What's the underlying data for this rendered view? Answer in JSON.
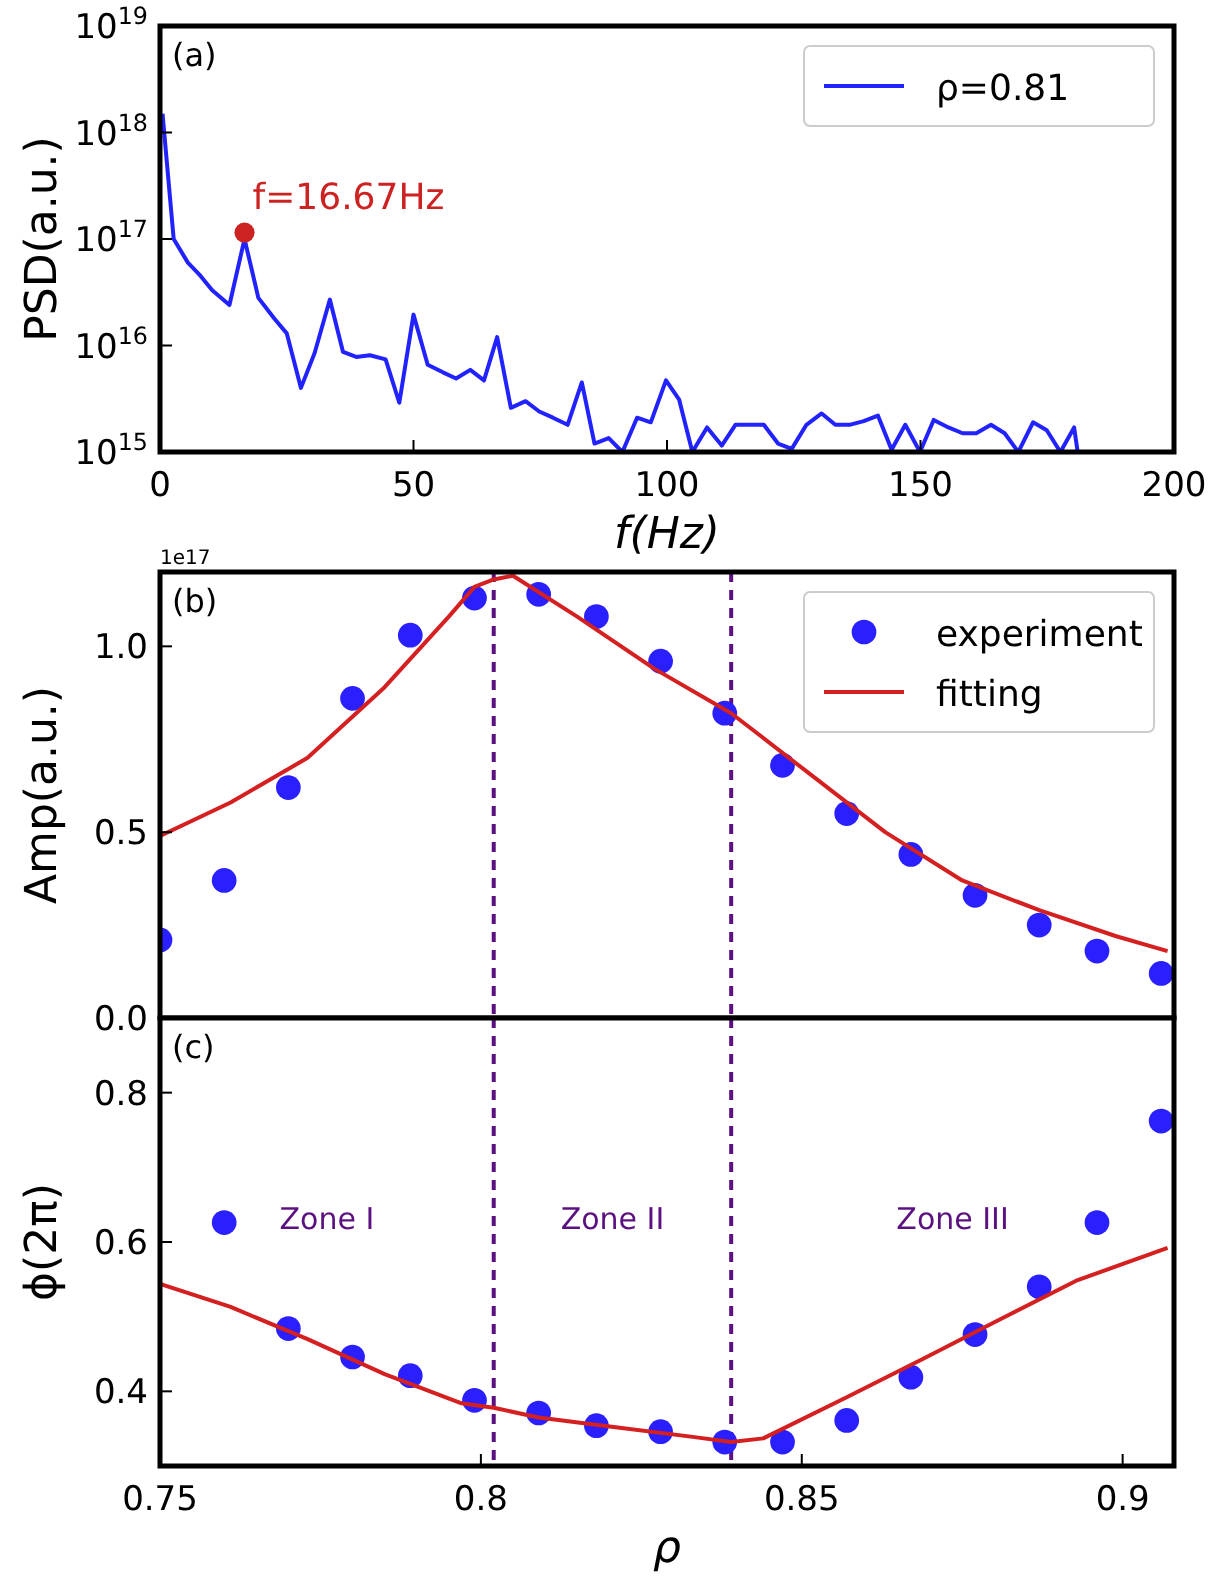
{
  "chart_data": [
    {
      "type": "line",
      "xlabel": "f(Hz)",
      "ylabel": "PSD(a.u.)",
      "log": "y",
      "xlim": [
        0,
        200
      ],
      "xticks": [
        0,
        50,
        100,
        150,
        200
      ],
      "ylim": [
        1000000000000000.0,
        1e+19
      ],
      "yticks": [
        {
          "value": 1000000000000000.0,
          "label": "10$^{15}$"
        },
        {
          "value": 1e+16,
          "label": "10$^{16}$"
        },
        {
          "value": 1e+17,
          "label": "10$^{17}$"
        },
        {
          "value": 1e+18,
          "label": "10$^{18}$"
        },
        {
          "value": 1e+19,
          "label": "10$^{19}$"
        }
      ],
      "legend": "top right",
      "annotations": [
        "(a)",
        {
          "text": "f=16.67Hz",
          "x": 16.67,
          "y": 1.15e+17
        }
      ],
      "series": [
        {
          "name": "ρ=0.81",
          "color": "#2222ff",
          "x": [
            0.5,
            2.7,
            5.5,
            8,
            10.3,
            13.7,
            16.67,
            19.4,
            22.5,
            25,
            27.8,
            30.5,
            33.5,
            36.1,
            38.7,
            41.4,
            44.5,
            47.2,
            50,
            52.8,
            55.8,
            58.4,
            61.2,
            63.9,
            66.5,
            69.2,
            72.1,
            74.8,
            77.5,
            80.4,
            83.2,
            85.7,
            88.5,
            91.2,
            94.1,
            96.8,
            99.8,
            102.4,
            105,
            107.9,
            110.8,
            113.5,
            116.5,
            119.1,
            121.9,
            124.6,
            127.5,
            130.5,
            133.2,
            136,
            138.8,
            141.6,
            144.3,
            147,
            149.9,
            152.6,
            155.5,
            158.3,
            161,
            163.9,
            166.6,
            169.3,
            172.2,
            174.9,
            177.6,
            180.3,
            181
          ],
          "values": [
            1.5e+18,
            1e+17,
            6e+16,
            4.5e+16,
            3.3e+16,
            2.4e+16,
            1e+17,
            2.8e+16,
            1.8e+16,
            1.3e+16,
            4000000000000000.0,
            8500000000000000.0,
            2.7e+16,
            8700000000000000.0,
            7800000000000000.0,
            8100000000000000.0,
            7400000000000000.0,
            2900000000000000.0,
            1.95e+16,
            6600000000000000.0,
            5600000000000000.0,
            4900000000000000.0,
            5900000000000000.0,
            4700000000000000.0,
            1.2e+16,
            2600000000000000.0,
            3000000000000000.0,
            2400000000000000.0,
            2100000000000000.0,
            1800000000000000.0,
            4500000000000000.0,
            1200000000000000.0,
            1350000000000000.0,
            1000000000000000.0,
            2100000000000000.0,
            1900000000000000.0,
            4700000000000000.0,
            3100000000000000.0,
            1000000000000000.0,
            1700000000000000.0,
            1150000000000000.0,
            1800000000000000.0,
            1800000000000000.0,
            1800000000000000.0,
            1200000000000000.0,
            1070000000000000.0,
            1800000000000000.0,
            2300000000000000.0,
            1800000000000000.0,
            1800000000000000.0,
            1950000000000000.0,
            2200000000000000.0,
            1050000000000000.0,
            1800000000000000.0,
            1000000000000000.0,
            2000000000000000.0,
            1700000000000000.0,
            1500000000000000.0,
            1500000000000000.0,
            1800000000000000.0,
            1500000000000000.0,
            1000000000000000.0,
            1900000000000000.0,
            1600000000000000.0,
            1000000000000000.0,
            1700000000000000.0,
            1000000000000000.0
          ]
        },
        {
          "type": "scatter",
          "marker": "circle",
          "color": "#cc2222",
          "x": [
            16.67
          ],
          "values": [
            1.15e+17
          ]
        }
      ]
    },
    {
      "type": "scatter",
      "ylabel": "Amp(a.u.)",
      "xlim": [
        0.75,
        0.908
      ],
      "ylim": [
        0,
        1.2
      ],
      "yticks": [
        {
          "value": 0,
          "label": "0.0"
        },
        0.5,
        {
          "value": 1,
          "label": "1.0"
        }
      ],
      "tick_labels": "y",
      "legend": "top right",
      "annotations": [
        "(b)",
        "1e17"
      ],
      "ref_lines": [
        {
          "axis": "x",
          "value": 0.802,
          "color": "#5c1180",
          "line_style": "dashed"
        },
        {
          "axis": "x",
          "value": 0.839,
          "color": "#5c1180",
          "line_style": "dashed"
        }
      ],
      "series": [
        {
          "name": "experiment",
          "marker": "circle",
          "color": "#2a1fff",
          "x": [
            0.75,
            0.76,
            0.77,
            0.78,
            0.789,
            0.799,
            0.809,
            0.818,
            0.828,
            0.838,
            0.847,
            0.857,
            0.867,
            0.877,
            0.887,
            0.896,
            0.906
          ],
          "values": [
            0.21,
            0.37,
            0.62,
            0.86,
            1.03,
            1.13,
            1.14,
            1.08,
            0.96,
            0.82,
            0.68,
            0.55,
            0.44,
            0.33,
            0.25,
            0.18,
            0.12
          ]
        },
        {
          "name": "fitting",
          "type": "line",
          "color": "#d42020",
          "x": [
            0.75,
            0.761,
            0.773,
            0.785,
            0.795,
            0.799,
            0.802,
            0.805,
            0.815,
            0.827,
            0.839,
            0.851,
            0.863,
            0.875,
            0.887,
            0.899,
            0.907
          ],
          "values": [
            0.49,
            0.58,
            0.7,
            0.89,
            1.08,
            1.16,
            1.18,
            1.19,
            1.08,
            0.94,
            0.82,
            0.66,
            0.5,
            0.37,
            0.29,
            0.22,
            0.18
          ]
        }
      ]
    },
    {
      "type": "scatter",
      "xlabel": "ρ",
      "ylabel": "ϕ(2π)",
      "xlim": [
        0.75,
        0.908
      ],
      "xticks": [
        0.75,
        0.8,
        0.85,
        0.9
      ],
      "ylim": [
        0.3,
        0.9
      ],
      "yticks": [
        0.4,
        0.6,
        0.8
      ],
      "annotations": [
        "(c)",
        "Zone I",
        "Zone II",
        "Zone III"
      ],
      "ref_lines": [
        {
          "axis": "x",
          "value": 0.802,
          "color": "#5c1180",
          "line_style": "dashed"
        },
        {
          "axis": "x",
          "value": 0.839,
          "color": "#5c1180",
          "line_style": "dashed"
        }
      ],
      "series": [
        {
          "marker": "circle",
          "color": "#2a1fff",
          "x": [
            0.76,
            0.77,
            0.78,
            0.789,
            0.799,
            0.809,
            0.818,
            0.828,
            0.838,
            0.847,
            0.857,
            0.867,
            0.877,
            0.887,
            0.896,
            0.906
          ],
          "values": [
            0.626,
            0.484,
            0.446,
            0.421,
            0.388,
            0.371,
            0.354,
            0.346,
            0.332,
            0.332,
            0.361,
            0.419,
            0.476,
            0.54,
            0.626,
            0.762
          ]
        },
        {
          "type": "line",
          "color": "#d42020",
          "x": [
            0.75,
            0.761,
            0.773,
            0.785,
            0.797,
            0.802,
            0.809,
            0.821,
            0.833,
            0.839,
            0.844,
            0.857,
            0.869,
            0.881,
            0.893,
            0.907
          ],
          "values": [
            0.544,
            0.513,
            0.47,
            0.423,
            0.384,
            0.378,
            0.365,
            0.352,
            0.339,
            0.332,
            0.337,
            0.392,
            0.444,
            0.497,
            0.549,
            0.592
          ]
        }
      ]
    }
  ]
}
